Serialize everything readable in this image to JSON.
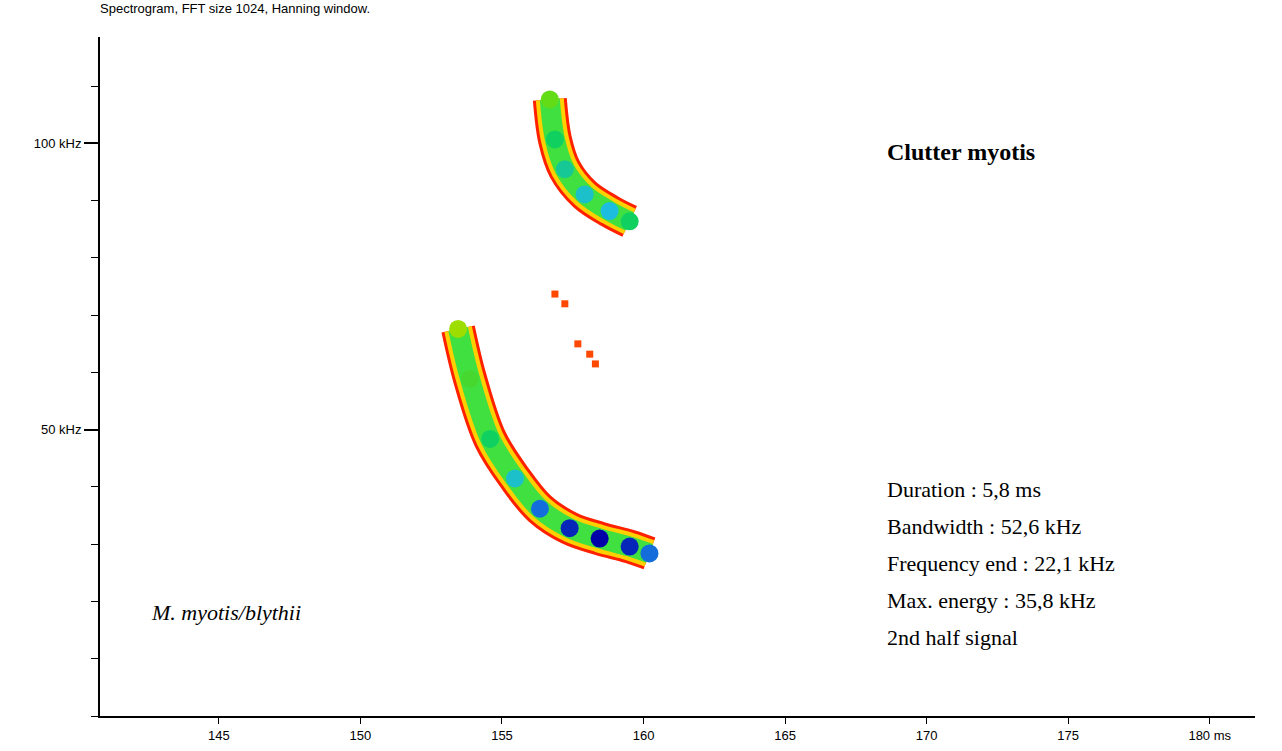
{
  "chart_data": {
    "type": "spectrogram",
    "title": "Spectrogram, FFT size 1024, Hanning window.",
    "xlim": [
      140.8,
      181.6
    ],
    "xticks": [
      145,
      150,
      155,
      160,
      165,
      170,
      175,
      {
        "value": 180,
        "label": "180 ms"
      }
    ],
    "ylim": [
      0,
      118.6
    ],
    "yticks": [
      {
        "value": 50,
        "label": "50 kHz"
      },
      {
        "value": 100,
        "label": "100 kHz"
      }
    ],
    "zlim": [
      0,
      1
    ],
    "grid": false,
    "series": [
      {
        "line_style": "wide",
        "x": [
          153.45,
          153.87,
          154.58,
          155.46,
          156.34,
          157.39,
          158.45,
          159.51,
          160.21
        ],
        "values": [
          67.6,
          58.9,
          48.4,
          41.5,
          36.2,
          32.8,
          31.0,
          29.6,
          28.4
        ],
        "intensity": [
          0.35,
          0.5,
          0.6,
          0.7,
          0.85,
          0.95,
          1.0,
          0.95,
          0.85
        ]
      },
      {
        "line_style": "wide",
        "x": [
          156.69,
          156.87,
          157.22,
          157.92,
          158.8,
          159.51
        ],
        "values": [
          107.7,
          100.7,
          95.5,
          91.1,
          88.2,
          86.4
        ],
        "intensity": [
          0.45,
          0.6,
          0.65,
          0.7,
          0.72,
          0.6
        ]
      },
      {
        "line_style": "thin",
        "x": [
          156.87,
          157.22,
          157.68,
          158.1,
          158.3
        ],
        "values": [
          73.7,
          72.0,
          65.0,
          63.2,
          61.5
        ],
        "intensity": [
          0.05,
          0.05,
          0.05,
          0.05,
          0.05
        ]
      }
    ],
    "annotations": [
      "Clutter myotis",
      "M. myotis/blythii",
      "Duration : 5,8 ms",
      "Bandwidth : 52,6 kHz",
      "Frequency end : 22,1 kHz",
      "Max. energy : 35,8 kHz",
      "2nd half signal"
    ]
  }
}
